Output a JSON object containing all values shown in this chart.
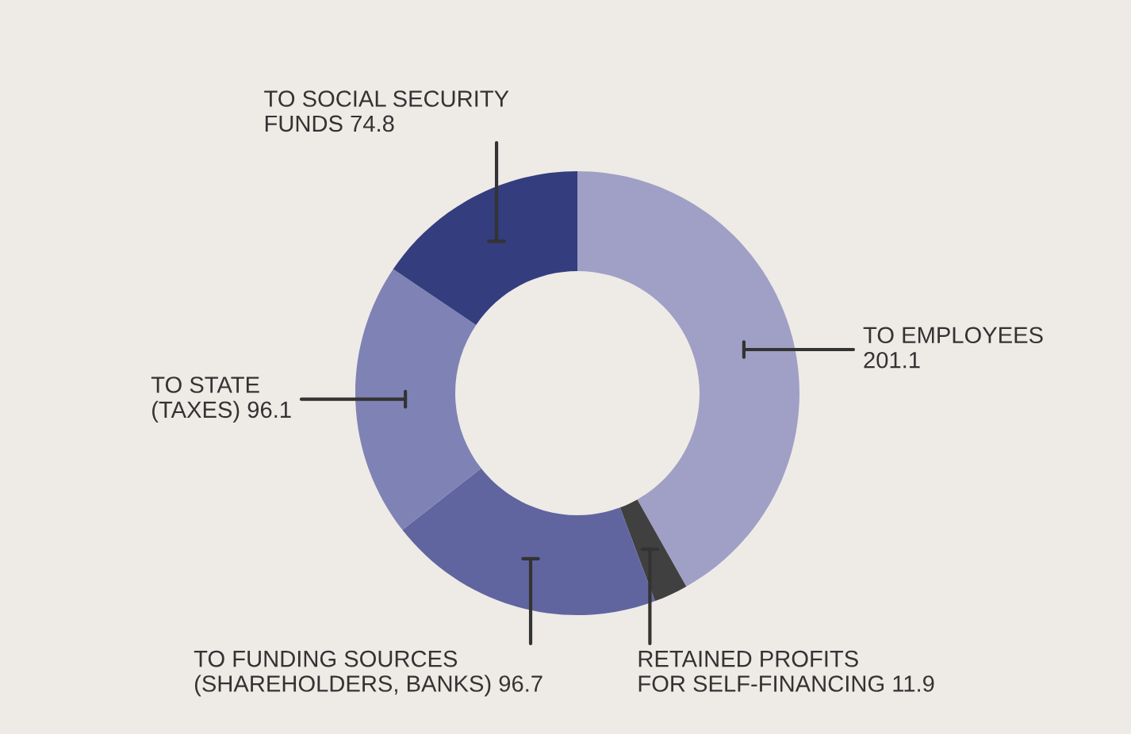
{
  "chart_data": {
    "type": "donut",
    "categories": [
      "TO EMPLOYEES\n201.1",
      "RETAINED PROFITS\nFOR SELF-FINANCING 11.9",
      "TO FUNDING SOURCES\n(SHAREHOLDERS, BANKS) 96.7",
      "TO STATE\n(TAXES) 96.1",
      "TO SOCIAL SECURITY\nFUNDS 74.8"
    ],
    "values": [
      201.1,
      11.9,
      96.7,
      96.1,
      74.8
    ],
    "colors": [
      "#a09fc6",
      "#404040",
      "#6065a0",
      "#7f82b4",
      "#343d7e"
    ]
  }
}
